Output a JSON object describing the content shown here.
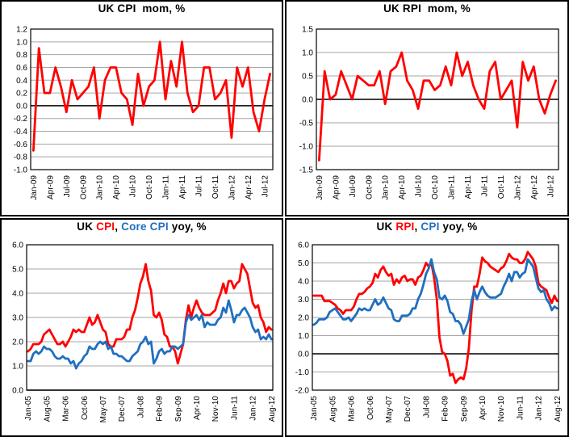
{
  "colors": {
    "red": "#FF0000",
    "blue": "#1F6FC0",
    "grid": "#A6A6A6",
    "axis": "#000000",
    "text": "#000000",
    "background": "#FFFFFF"
  },
  "x_axes": {
    "months_2009_2012": [
      "Jan-09",
      "Feb-09",
      "Mar-09",
      "Apr-09",
      "May-09",
      "Jun-09",
      "Jul-09",
      "Aug-09",
      "Sep-09",
      "Oct-09",
      "Nov-09",
      "Dec-09",
      "Jan-10",
      "Feb-10",
      "Mar-10",
      "Apr-10",
      "May-10",
      "Jun-10",
      "Jul-10",
      "Aug-10",
      "Sep-10",
      "Oct-10",
      "Nov-10",
      "Dec-10",
      "Jan-11",
      "Feb-11",
      "Mar-11",
      "Apr-11",
      "May-11",
      "Jun-11",
      "Jul-11",
      "Aug-11",
      "Sep-11",
      "Oct-11",
      "Nov-11",
      "Dec-11",
      "Jan-12",
      "Feb-12",
      "Mar-12",
      "Apr-12",
      "May-12",
      "Jun-12",
      "Jul-12",
      "Aug-12"
    ],
    "months_2005_2012": [
      "Jan-05",
      "Feb-05",
      "Mar-05",
      "Apr-05",
      "May-05",
      "Jun-05",
      "Jul-05",
      "Aug-05",
      "Sep-05",
      "Oct-05",
      "Nov-05",
      "Dec-05",
      "Jan-06",
      "Feb-06",
      "Mar-06",
      "Apr-06",
      "May-06",
      "Jun-06",
      "Jul-06",
      "Aug-06",
      "Sep-06",
      "Oct-06",
      "Nov-06",
      "Dec-06",
      "Jan-07",
      "Feb-07",
      "Mar-07",
      "Apr-07",
      "May-07",
      "Jun-07",
      "Jul-07",
      "Aug-07",
      "Sep-07",
      "Oct-07",
      "Nov-07",
      "Dec-07",
      "Jan-08",
      "Feb-08",
      "Mar-08",
      "Apr-08",
      "May-08",
      "Jun-08",
      "Jul-08",
      "Aug-08",
      "Sep-08",
      "Oct-08",
      "Nov-08",
      "Dec-08",
      "Jan-09",
      "Feb-09",
      "Mar-09",
      "Apr-09",
      "May-09",
      "Jun-09",
      "Jul-09",
      "Aug-09",
      "Sep-09",
      "Oct-09",
      "Nov-09",
      "Dec-09",
      "Jan-10",
      "Feb-10",
      "Mar-10",
      "Apr-10",
      "May-10",
      "Jun-10",
      "Jul-10",
      "Aug-10",
      "Sep-10",
      "Oct-10",
      "Nov-10",
      "Dec-10",
      "Jan-11",
      "Feb-11",
      "Mar-11",
      "Apr-11",
      "May-11",
      "Jun-11",
      "Jul-11",
      "Aug-11",
      "Sep-11",
      "Oct-11",
      "Nov-11",
      "Dec-11",
      "Jan-12",
      "Feb-12",
      "Mar-12",
      "Apr-12",
      "May-12",
      "Jun-12",
      "Jul-12",
      "Aug-12"
    ]
  },
  "chart_data": [
    {
      "type": "line",
      "title": "UK CPI  mom, %",
      "title_parts": [
        {
          "text": "UK CPI  mom, %",
          "color": "#000000"
        }
      ],
      "x_axis": "months_2009_2012",
      "x_tick_every": 3,
      "x_tick_labels": [
        "Jan-09",
        "Apr-09",
        "Jul-09",
        "Oct-09",
        "Jan-10",
        "Apr-10",
        "Jul-10",
        "Oct-10",
        "Jan-11",
        "Apr-11",
        "Jul-11",
        "Oct-11",
        "Jan-12",
        "Apr-12",
        "Jul-12"
      ],
      "ylim": [
        -1.0,
        1.2
      ],
      "ytick_step": 0.2,
      "ytick_labels": [
        "1.2",
        "1.0",
        "0.8",
        "0.6",
        "0.4",
        "0.2",
        "0.0",
        "-0.2",
        "-0.4",
        "-0.6",
        "-0.8",
        "-1.0"
      ],
      "grid": true,
      "legend_position": "none",
      "series": [
        {
          "name": "UK CPI mom %",
          "color": "#FF0000",
          "values": [
            -0.7,
            0.9,
            0.2,
            0.2,
            0.6,
            0.3,
            -0.1,
            0.4,
            0.1,
            0.2,
            0.3,
            0.6,
            -0.2,
            0.4,
            0.6,
            0.6,
            0.2,
            0.1,
            -0.3,
            0.5,
            0.0,
            0.3,
            0.4,
            1.0,
            0.1,
            0.7,
            0.3,
            1.0,
            0.2,
            -0.1,
            0.0,
            0.6,
            0.6,
            0.1,
            0.2,
            0.4,
            -0.5,
            0.6,
            0.3,
            0.6,
            -0.1,
            -0.4,
            0.1,
            0.5
          ]
        }
      ]
    },
    {
      "type": "line",
      "title": "UK RPI  mom, %",
      "title_parts": [
        {
          "text": "UK RPI  mom, %",
          "color": "#000000"
        }
      ],
      "x_axis": "months_2009_2012",
      "x_tick_every": 3,
      "x_tick_labels": [
        "Jan-09",
        "Apr-09",
        "Jul-09",
        "Oct-09",
        "Jan-10",
        "Apr-10",
        "Jul-10",
        "Oct-10",
        "Jan-11",
        "Apr-11",
        "Jul-11",
        "Oct-11",
        "Jan-12",
        "Apr-12",
        "Jul-12"
      ],
      "ylim": [
        -1.5,
        1.5
      ],
      "ytick_step": 0.5,
      "ytick_labels": [
        "1.5",
        "1.0",
        "0.5",
        "0.0",
        "-0.5",
        "-1.0",
        "-1.5"
      ],
      "grid": true,
      "legend_position": "none",
      "series": [
        {
          "name": "UK RPI mom %",
          "color": "#FF0000",
          "values": [
            -1.3,
            0.6,
            0.0,
            0.1,
            0.6,
            0.3,
            0.0,
            0.5,
            0.4,
            0.3,
            0.3,
            0.6,
            -0.1,
            0.6,
            0.7,
            1.0,
            0.4,
            0.2,
            -0.2,
            0.4,
            0.4,
            0.2,
            0.3,
            0.7,
            0.3,
            1.0,
            0.5,
            0.8,
            0.3,
            0.0,
            -0.2,
            0.6,
            0.8,
            0.0,
            0.2,
            0.4,
            -0.6,
            0.8,
            0.4,
            0.7,
            0.0,
            -0.3,
            0.1,
            0.4
          ]
        }
      ]
    },
    {
      "type": "line",
      "title": "UK CPI, Core CPI yoy, %",
      "title_parts": [
        {
          "text": "UK ",
          "color": "#000000"
        },
        {
          "text": "CPI",
          "color": "#FF0000"
        },
        {
          "text": ", ",
          "color": "#000000"
        },
        {
          "text": "Core CPI",
          "color": "#1F6FC0"
        },
        {
          "text": " yoy, %",
          "color": "#000000"
        }
      ],
      "x_axis": "months_2005_2012",
      "x_tick_every": 7,
      "x_tick_labels": [
        "Jan-05",
        "Aug-05",
        "Mar-06",
        "Oct-06",
        "May-07",
        "Dec-07",
        "Jul-08",
        "Feb-09",
        "Sep-09",
        "Apr-10",
        "Nov-10",
        "Jun-11",
        "Jan-12",
        "Aug-12"
      ],
      "ylim": [
        0.0,
        6.0
      ],
      "ytick_step": 1.0,
      "ytick_labels": [
        "6.0",
        "5.0",
        "4.0",
        "3.0",
        "2.0",
        "1.0",
        "0.0"
      ],
      "grid": true,
      "legend_position": "none",
      "series": [
        {
          "name": "UK CPI yoy %",
          "color": "#FF0000",
          "values": [
            1.6,
            1.7,
            1.9,
            1.9,
            1.9,
            2.0,
            2.3,
            2.4,
            2.5,
            2.3,
            2.1,
            1.9,
            1.9,
            2.0,
            1.8,
            2.0,
            2.2,
            2.5,
            2.4,
            2.5,
            2.4,
            2.4,
            2.7,
            3.0,
            2.7,
            2.8,
            3.1,
            2.8,
            2.5,
            2.4,
            1.9,
            1.8,
            1.8,
            2.1,
            2.1,
            2.1,
            2.2,
            2.5,
            2.5,
            3.0,
            3.3,
            3.8,
            4.4,
            4.7,
            5.2,
            4.5,
            4.1,
            3.1,
            3.0,
            3.2,
            2.9,
            2.3,
            2.2,
            1.8,
            1.8,
            1.6,
            1.1,
            1.5,
            1.9,
            2.9,
            3.5,
            3.0,
            3.4,
            3.7,
            3.4,
            3.2,
            3.1,
            3.1,
            3.1,
            3.2,
            3.3,
            3.7,
            4.0,
            4.4,
            4.0,
            4.5,
            4.5,
            4.2,
            4.4,
            4.5,
            5.2,
            5.0,
            4.8,
            4.2,
            3.6,
            3.4,
            3.5,
            3.0,
            2.8,
            2.4,
            2.6,
            2.5
          ]
        },
        {
          "name": "UK Core CPI yoy %",
          "color": "#1F6FC0",
          "values": [
            1.2,
            1.2,
            1.5,
            1.6,
            1.5,
            1.6,
            1.8,
            1.7,
            1.7,
            1.6,
            1.4,
            1.3,
            1.3,
            1.4,
            1.3,
            1.3,
            1.1,
            1.2,
            0.9,
            1.1,
            1.2,
            1.4,
            1.5,
            1.8,
            1.7,
            1.7,
            1.9,
            2.0,
            1.9,
            2.0,
            1.7,
            1.8,
            1.5,
            1.5,
            1.4,
            1.4,
            1.3,
            1.2,
            1.2,
            1.4,
            1.5,
            1.6,
            1.9,
            2.0,
            2.2,
            1.9,
            2.0,
            1.1,
            1.3,
            1.6,
            1.7,
            1.5,
            1.6,
            1.6,
            1.8,
            1.8,
            1.7,
            1.8,
            1.9,
            2.8,
            3.1,
            2.9,
            3.0,
            3.1,
            2.9,
            3.1,
            2.6,
            2.8,
            2.7,
            2.7,
            2.7,
            2.9,
            3.0,
            3.4,
            3.2,
            3.7,
            3.3,
            2.8,
            3.1,
            3.1,
            3.3,
            3.4,
            3.2,
            3.0,
            2.6,
            2.4,
            2.5,
            2.1,
            2.2,
            2.1,
            2.3,
            2.1
          ]
        }
      ]
    },
    {
      "type": "line",
      "title": "UK RPI, CPI yoy, %",
      "title_parts": [
        {
          "text": "UK ",
          "color": "#000000"
        },
        {
          "text": "RPI",
          "color": "#FF0000"
        },
        {
          "text": ", ",
          "color": "#000000"
        },
        {
          "text": "CPI",
          "color": "#1F6FC0"
        },
        {
          "text": " yoy, %",
          "color": "#000000"
        }
      ],
      "x_axis": "months_2005_2012",
      "x_tick_every": 7,
      "x_tick_labels": [
        "Jan-05",
        "Aug-05",
        "Mar-06",
        "Oct-06",
        "May-07",
        "Dec-07",
        "Jul-08",
        "Feb-09",
        "Sep-09",
        "Apr-10",
        "Nov-10",
        "Jun-11",
        "Jan-12",
        "Aug-12"
      ],
      "ylim": [
        -2.0,
        6.0
      ],
      "ytick_step": 1.0,
      "ytick_labels": [
        "6.0",
        "5.0",
        "4.0",
        "3.0",
        "2.0",
        "1.0",
        "0.0",
        "-1.0",
        "-2.0"
      ],
      "grid": true,
      "legend_position": "none",
      "series": [
        {
          "name": "UK RPI yoy %",
          "color": "#FF0000",
          "values": [
            3.2,
            3.2,
            3.2,
            3.2,
            2.9,
            2.9,
            2.9,
            2.8,
            2.7,
            2.5,
            2.4,
            2.2,
            2.4,
            2.4,
            2.4,
            2.6,
            3.0,
            3.3,
            3.3,
            3.4,
            3.6,
            3.7,
            3.9,
            4.4,
            4.2,
            4.6,
            4.8,
            4.5,
            4.3,
            4.4,
            3.8,
            4.1,
            3.9,
            4.2,
            4.3,
            4.0,
            4.1,
            4.1,
            3.8,
            4.2,
            4.3,
            4.6,
            5.0,
            4.8,
            5.0,
            4.2,
            3.0,
            0.9,
            0.1,
            0.0,
            -0.4,
            -1.2,
            -1.1,
            -1.6,
            -1.4,
            -1.3,
            -1.4,
            -0.8,
            0.3,
            2.4,
            3.7,
            3.7,
            4.4,
            5.3,
            5.1,
            5.0,
            4.8,
            4.7,
            4.6,
            4.5,
            4.7,
            4.8,
            5.1,
            5.5,
            5.3,
            5.2,
            5.2,
            5.0,
            5.0,
            5.2,
            5.6,
            5.4,
            5.2,
            4.8,
            3.9,
            3.7,
            3.6,
            3.5,
            3.1,
            2.8,
            3.2,
            2.9
          ]
        },
        {
          "name": "UK CPI yoy %",
          "color": "#1F6FC0",
          "values": [
            1.6,
            1.7,
            1.9,
            1.9,
            1.9,
            2.0,
            2.3,
            2.4,
            2.5,
            2.3,
            2.1,
            1.9,
            1.9,
            2.0,
            1.8,
            2.0,
            2.2,
            2.5,
            2.4,
            2.5,
            2.4,
            2.4,
            2.7,
            3.0,
            2.7,
            2.8,
            3.1,
            2.8,
            2.5,
            2.4,
            1.9,
            1.8,
            1.8,
            2.1,
            2.1,
            2.1,
            2.2,
            2.5,
            2.5,
            3.0,
            3.3,
            3.8,
            4.4,
            4.7,
            5.2,
            4.5,
            4.1,
            3.1,
            3.0,
            3.2,
            2.9,
            2.3,
            2.2,
            1.8,
            1.8,
            1.6,
            1.1,
            1.5,
            1.9,
            2.9,
            3.5,
            3.0,
            3.4,
            3.7,
            3.4,
            3.2,
            3.1,
            3.1,
            3.1,
            3.2,
            3.3,
            3.7,
            4.0,
            4.4,
            4.0,
            4.5,
            4.5,
            4.2,
            4.4,
            4.5,
            5.2,
            5.0,
            4.8,
            4.2,
            3.6,
            3.4,
            3.5,
            3.0,
            2.8,
            2.4,
            2.6,
            2.5
          ]
        }
      ]
    }
  ]
}
